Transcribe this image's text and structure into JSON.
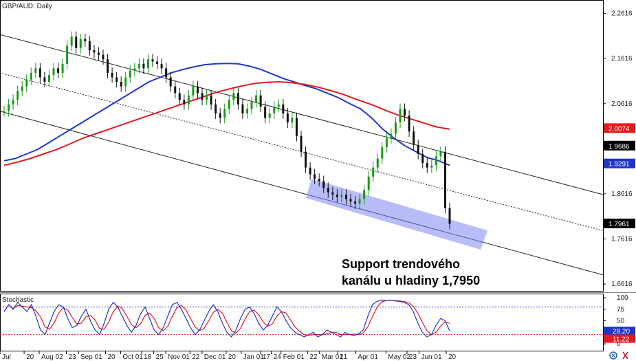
{
  "chart_data": {
    "type": "candlestick",
    "title": "GBP/AUD: Daily",
    "price_axis": {
      "ticks": [
        "2.2616",
        "2.1616",
        "2.0616",
        "1.8616",
        "1.7616",
        "1.6616"
      ],
      "ylim": [
        1.645,
        2.29
      ]
    },
    "price_tags": [
      {
        "label": "2.0074",
        "value": 2.0074,
        "color": "#e41a1c",
        "text_color": "#ffffff"
      },
      {
        "label": "1.9686",
        "value": 1.9686,
        "color": "#000000",
        "text_color": "#ffffff"
      },
      {
        "label": "1.9291",
        "value": 1.9291,
        "color": "#1f35c9",
        "text_color": "#ffffff"
      },
      {
        "label": "1.7961",
        "value": 1.7961,
        "color": "#000000",
        "text_color": "#ffffff"
      }
    ],
    "x_axis": {
      "labels": [
        "Jul",
        "20",
        "Aug 02",
        "23",
        "Sep 01",
        "20",
        "Oct 01",
        "18",
        "25",
        "Nov 01",
        "22",
        "Dec 01",
        "20",
        "Jan 01",
        "17",
        "24",
        "Feb 01",
        "22",
        "Mar 01",
        "21",
        "Apr 01",
        "May 02",
        "23",
        "Jun 01",
        "20"
      ]
    },
    "series": [
      {
        "name": "",
        "type": "candles",
        "values": [
          2.045,
          2.06,
          2.07,
          2.09,
          2.1,
          2.115,
          2.13,
          2.14,
          2.12,
          2.11,
          2.125,
          2.14,
          2.13,
          2.15,
          2.19,
          2.21,
          2.185,
          2.205,
          2.2,
          2.18,
          2.175,
          2.17,
          2.16,
          2.13,
          2.12,
          2.11,
          2.1,
          2.12,
          2.135,
          2.14,
          2.15,
          2.14,
          2.16,
          2.155,
          2.15,
          2.14,
          2.12,
          2.1,
          2.085,
          2.07,
          2.06,
          2.08,
          2.1,
          2.085,
          2.07,
          2.08,
          2.06,
          2.04,
          2.03,
          2.05,
          2.07,
          2.085,
          2.06,
          2.04,
          2.05,
          2.065,
          2.08,
          2.055,
          2.03,
          2.04,
          2.055,
          2.06,
          2.04,
          2.02,
          2.03,
          1.99,
          1.955,
          1.92,
          1.905,
          1.895,
          1.89,
          1.875,
          1.865,
          1.86,
          1.855,
          1.86,
          1.85,
          1.845,
          1.84,
          1.85,
          1.87,
          1.9,
          1.92,
          1.94,
          1.965,
          1.985,
          1.995,
          2.02,
          2.05,
          2.035,
          2.0,
          1.97,
          1.95,
          1.93,
          1.92,
          1.925,
          1.945,
          1.955,
          1.83,
          1.795
        ]
      },
      {
        "name": "",
        "type": "ma",
        "color": "#1f35c9",
        "values": [
          1.935,
          1.94,
          1.95,
          1.96,
          1.975,
          1.99,
          2.005,
          2.02,
          2.035,
          2.05,
          2.065,
          2.08,
          2.095,
          2.11,
          2.12,
          2.13,
          2.137,
          2.143,
          2.148,
          2.15,
          2.151,
          2.15,
          2.145,
          2.138,
          2.128,
          2.118,
          2.11,
          2.102,
          2.095,
          2.085,
          2.075,
          2.062,
          2.05,
          2.03,
          2.005,
          1.985,
          1.968,
          1.955,
          1.942,
          1.935,
          1.925
        ]
      },
      {
        "name": "",
        "type": "ma",
        "color": "#e41a1c",
        "values": [
          1.925,
          1.932,
          1.94,
          1.95,
          1.96,
          1.972,
          1.985,
          1.995,
          2.005,
          2.015,
          2.025,
          2.035,
          2.045,
          2.055,
          2.065,
          2.075,
          2.085,
          2.093,
          2.1,
          2.106,
          2.109,
          2.11,
          2.108,
          2.104,
          2.098,
          2.09,
          2.081,
          2.07,
          2.06,
          2.048,
          2.037,
          2.028,
          2.019,
          2.01,
          2.005
        ]
      }
    ],
    "channel": {
      "upper_start": 2.215,
      "upper_end": 1.86,
      "mid_start": 2.13,
      "mid_end": 1.78,
      "lower_start": 2.045,
      "lower_end": 1.682
    },
    "annotation": {
      "line1": "Support trendového",
      "line2": "kanálu u hladiny 1,7950"
    },
    "stochastic": {
      "title": "Stochastic",
      "ticks": [
        "100",
        "75",
        "50",
        "25",
        "0"
      ],
      "levels": [
        80,
        20
      ],
      "k_label": "28.20",
      "d_label": "11.22",
      "k_value": 28.2,
      "d_value": 11.22,
      "k": [
        70,
        85,
        75,
        90,
        80,
        70,
        85,
        60,
        30,
        20,
        45,
        70,
        85,
        80,
        55,
        35,
        40,
        60,
        75,
        50,
        30,
        20,
        45,
        75,
        90,
        80,
        60,
        40,
        25,
        40,
        65,
        80,
        55,
        30,
        20,
        35,
        60,
        85,
        90,
        75,
        55,
        35,
        20,
        30,
        50,
        70,
        85,
        70,
        45,
        25,
        15,
        30,
        55,
        75,
        80,
        65,
        45,
        30,
        40,
        60,
        80,
        70,
        50,
        35,
        25,
        20,
        15,
        20,
        25,
        15,
        20,
        30,
        25,
        20,
        15,
        25,
        20,
        18,
        22,
        30,
        60,
        85,
        92,
        95,
        94,
        95,
        93,
        92,
        90,
        85,
        70,
        45,
        25,
        15,
        20,
        40,
        55,
        50,
        28
      ]
    }
  }
}
